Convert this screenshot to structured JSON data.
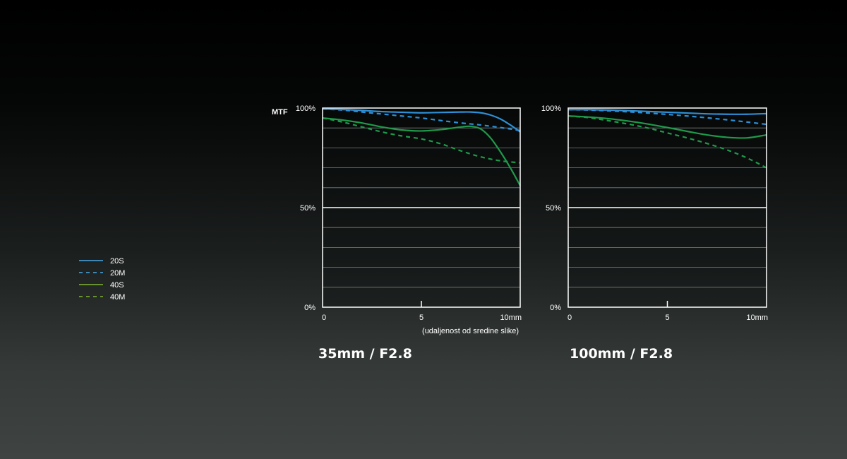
{
  "colors": {
    "s20": "#2d8fd6",
    "m20": "#2d8fd6",
    "s40": "#1f9a4a",
    "m40": "#1f9a4a",
    "legend_s20": "#4aa8e6",
    "legend_m20": "#4aa8e6",
    "legend_s40": "#7fb531",
    "legend_m40": "#7fb531"
  },
  "legend": [
    {
      "label": "20S",
      "style": "solid",
      "color_key": "legend_s20"
    },
    {
      "label": "20M",
      "style": "dashed",
      "color_key": "legend_m20"
    },
    {
      "label": "40S",
      "style": "solid",
      "color_key": "legend_s40"
    },
    {
      "label": "40M",
      "style": "dashed",
      "color_key": "legend_m40"
    }
  ],
  "chart_data": [
    {
      "type": "line",
      "title": "35mm / F2.8",
      "ylabel": "MTF",
      "xlabel": "(udaljenost od sredine slike)",
      "xlim": [
        0,
        10
      ],
      "ylim": [
        0,
        100
      ],
      "x_ticks": [
        {
          "value": 0,
          "label": "0"
        },
        {
          "value": 5,
          "label": "5"
        },
        {
          "value": 10,
          "label": "10mm"
        }
      ],
      "y_ticks": [
        {
          "value": 100,
          "label": "100%"
        },
        {
          "value": 50,
          "label": "50%"
        },
        {
          "value": 0,
          "label": "0%"
        }
      ],
      "grid_step": 10,
      "series": [
        {
          "name": "20S",
          "style": "solid",
          "color_key": "s20",
          "x": [
            0,
            1,
            2,
            3,
            4,
            5,
            6,
            7,
            7.5,
            8,
            8.5,
            9,
            9.5,
            10
          ],
          "y": [
            99.5,
            99.3,
            98.8,
            98.2,
            97.9,
            97.6,
            97.8,
            98.0,
            98.0,
            97.6,
            96.5,
            94.5,
            91.5,
            88.0
          ]
        },
        {
          "name": "20M",
          "style": "dashed",
          "color_key": "m20",
          "x": [
            0,
            1,
            2,
            3,
            4,
            5,
            6,
            7,
            8,
            9,
            10
          ],
          "y": [
            99.5,
            99.0,
            98.0,
            97.0,
            96.0,
            95.0,
            93.7,
            92.5,
            91.5,
            90.2,
            88.7
          ]
        },
        {
          "name": "40S",
          "style": "solid",
          "color_key": "s40",
          "x": [
            0,
            1,
            2,
            3,
            4,
            5,
            6,
            7,
            7.5,
            8,
            8.5,
            9,
            9.5,
            10
          ],
          "y": [
            95.0,
            94.0,
            92.5,
            90.5,
            89.0,
            88.5,
            89.2,
            90.5,
            90.8,
            89.5,
            85.0,
            78.0,
            70.0,
            61.0
          ]
        },
        {
          "name": "40M",
          "style": "dashed",
          "color_key": "m40",
          "x": [
            0,
            1,
            2,
            3,
            4,
            5,
            6,
            7,
            8,
            9,
            10
          ],
          "y": [
            95.0,
            93.0,
            90.5,
            88.0,
            86.0,
            84.5,
            82.0,
            78.5,
            75.5,
            73.5,
            72.5
          ]
        }
      ]
    },
    {
      "type": "line",
      "title": "100mm / F2.8",
      "xlim": [
        0,
        10
      ],
      "ylim": [
        0,
        100
      ],
      "x_ticks": [
        {
          "value": 0,
          "label": "0"
        },
        {
          "value": 5,
          "label": "5"
        },
        {
          "value": 10,
          "label": "10mm"
        }
      ],
      "y_ticks": [
        {
          "value": 100,
          "label": "100%"
        },
        {
          "value": 50,
          "label": "50%"
        },
        {
          "value": 0,
          "label": "0%"
        }
      ],
      "grid_step": 10,
      "series": [
        {
          "name": "20S",
          "style": "solid",
          "color_key": "s20",
          "x": [
            0,
            1,
            2,
            3,
            4,
            5,
            6,
            7,
            8,
            9,
            10
          ],
          "y": [
            99.2,
            99.2,
            99.0,
            98.7,
            98.3,
            97.9,
            97.5,
            97.1,
            96.9,
            96.9,
            97.2
          ]
        },
        {
          "name": "20M",
          "style": "dashed",
          "color_key": "m20",
          "x": [
            0,
            1,
            2,
            3,
            4,
            5,
            6,
            7,
            8,
            9,
            10
          ],
          "y": [
            99.2,
            99.0,
            98.6,
            98.1,
            97.5,
            96.8,
            96.0,
            95.1,
            94.1,
            93.0,
            91.8
          ]
        },
        {
          "name": "40S",
          "style": "solid",
          "color_key": "s40",
          "x": [
            0,
            1,
            2,
            3,
            4,
            5,
            6,
            7,
            8,
            9,
            10
          ],
          "y": [
            96.0,
            95.5,
            94.7,
            93.5,
            92.0,
            90.2,
            88.3,
            86.5,
            85.3,
            85.0,
            86.5
          ]
        },
        {
          "name": "40M",
          "style": "dashed",
          "color_key": "m40",
          "x": [
            0,
            1,
            2,
            3,
            4,
            5,
            6,
            7,
            8,
            9,
            10
          ],
          "y": [
            96.0,
            95.2,
            93.7,
            92.0,
            90.0,
            87.5,
            85.0,
            82.2,
            79.0,
            75.0,
            70.0
          ]
        }
      ]
    }
  ]
}
